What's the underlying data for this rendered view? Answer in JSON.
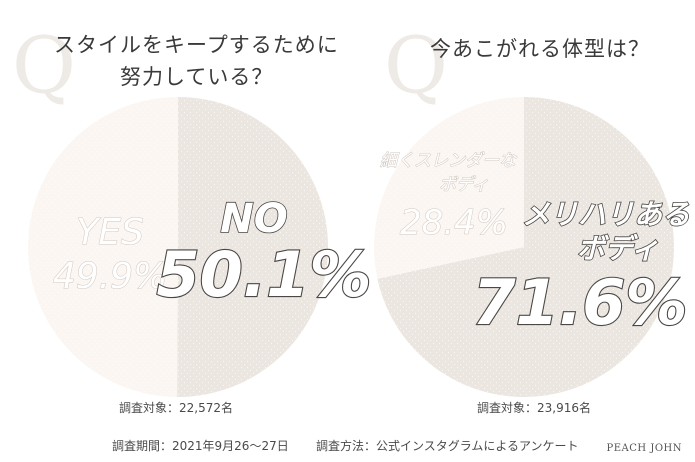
{
  "chart_data": [
    {
      "type": "pie",
      "title": "スタイルをキープするために努力している？",
      "title_lines": [
        "スタイルをキープするために",
        "努力している？"
      ],
      "q_mark": "Q",
      "slices": [
        {
          "label": "NO",
          "value": 50.1,
          "value_text": "50.1%",
          "color": "#ece6e0"
        },
        {
          "label": "YES",
          "value": 49.9,
          "value_text": "49.9%",
          "color": "#fcf6f2"
        }
      ],
      "note": "調査対象：22,572名"
    },
    {
      "type": "pie",
      "title": "今あこがれる体型は？",
      "title_lines": [
        "今あこがれる体型は？"
      ],
      "q_mark": "Q",
      "slices": [
        {
          "label": "メリハリあるボディ",
          "label_lines": [
            "メリハリある",
            "ボディ"
          ],
          "value": 71.6,
          "value_text": "71.6%",
          "color": "#ece6e0"
        },
        {
          "label": "細くスレンダーなボディ",
          "label_lines": [
            "細くスレンダーな",
            "ボディ"
          ],
          "value": 28.4,
          "value_text": "28.4%",
          "color": "#fcf6f2"
        }
      ],
      "note": "調査対象：23,916名"
    }
  ],
  "footer": {
    "period": "調査期間：2021年9月26〜27日",
    "method": "調査方法：公式インスタグラムによるアンケート",
    "brand": "PEACH JOHN"
  }
}
